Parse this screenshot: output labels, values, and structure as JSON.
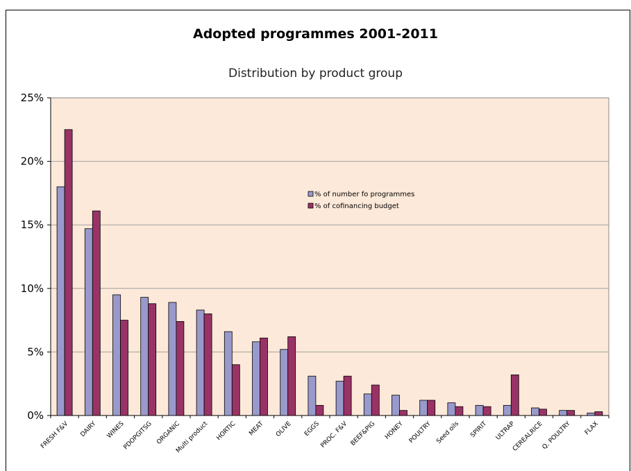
{
  "chart_data": {
    "type": "bar",
    "title": "Adopted programmes 2001-2011",
    "subtitle": "Distribution by product group",
    "categories": [
      "FRESH F&V",
      "DAIRY",
      "WINES",
      "PDOPGITSG",
      "ORGANIC",
      "Multi product",
      "HORTIC",
      "MEAT",
      "OLIVE",
      "EGGS",
      "PROC. F&V",
      "BEEF&PIG",
      "HONEY",
      "POULTRY",
      "Seed oils",
      "SPIRIT",
      "ULTRAP",
      "CEREALRICE",
      "Q. POULTRY",
      "FLAX"
    ],
    "series": [
      {
        "name": "% of number fo programmes",
        "color": "#9999cc",
        "values": [
          18.0,
          14.7,
          9.5,
          9.3,
          8.9,
          8.3,
          6.6,
          5.8,
          5.2,
          3.1,
          2.7,
          1.7,
          1.6,
          1.2,
          1.0,
          0.8,
          0.8,
          0.6,
          0.4,
          0.2
        ]
      },
      {
        "name": "% of cofinancing budget",
        "color": "#993366",
        "values": [
          22.5,
          16.1,
          7.5,
          8.8,
          7.4,
          8.0,
          4.0,
          6.1,
          6.2,
          0.8,
          3.1,
          2.4,
          0.4,
          1.2,
          0.7,
          0.7,
          3.2,
          0.5,
          0.4,
          0.3
        ]
      }
    ],
    "ylim": [
      0,
      25
    ],
    "yticks": [
      "0%",
      "5%",
      "10%",
      "15%",
      "20%",
      "25%"
    ],
    "grid": true,
    "legend_position": "inside-center",
    "plot_background": "#fde9d9"
  }
}
